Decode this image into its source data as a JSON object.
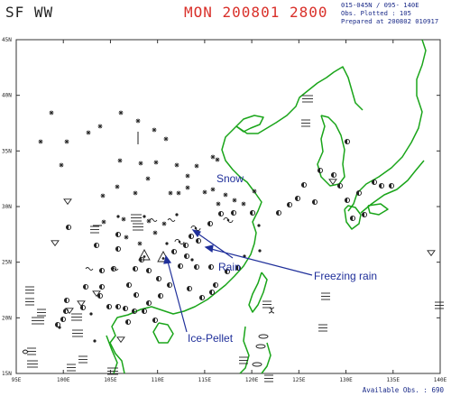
{
  "header": {
    "title_left": "SF WW",
    "title_center": "MON 200801 2800",
    "info_lines": [
      "015-045N / 095- 140E",
      "Obs. Plotted : 105",
      "Prepared at 200802 010917"
    ]
  },
  "footer": {
    "available_obs": "Available Obs. : 690"
  },
  "axes": {
    "lat_labels": [
      "45N",
      "40N",
      "35N",
      "30N",
      "25N",
      "20N",
      "15N"
    ],
    "lon_labels": [
      "95E",
      "100E",
      "105E",
      "110E",
      "115E",
      "120E",
      "125E",
      "130E",
      "135E",
      "140E"
    ],
    "lat_range": [
      15,
      45
    ],
    "lon_range": [
      95,
      140
    ]
  },
  "annotations": [
    {
      "id": "snow",
      "label": "Snow"
    },
    {
      "id": "rain",
      "label": "Rain"
    },
    {
      "id": "freezing-rain",
      "label": "Freezing rain"
    },
    {
      "id": "ice-pellet",
      "label": "Ice-Pellet"
    }
  ],
  "colors": {
    "coastline": "#1aa51a",
    "annotation": "#1f2f9a",
    "title_center": "#d9302a",
    "symbol": "#222222",
    "info_text": "#1a2a88"
  }
}
